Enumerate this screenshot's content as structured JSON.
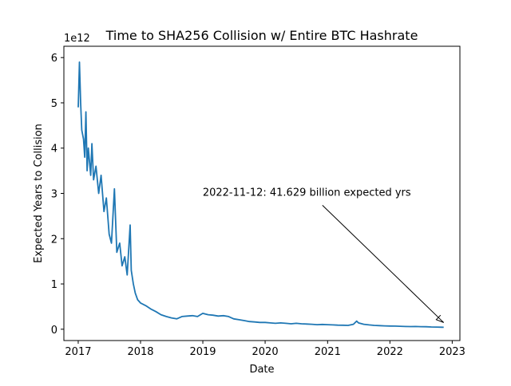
{
  "chart_data": {
    "type": "line",
    "title": "Time to SHA256 Collision w/ Entire BTC Hashrate",
    "xlabel": "Date",
    "ylabel": "Expected Years to Collision",
    "y_offset_label": "1e12",
    "x_scale": "time",
    "xlim": [
      "2016-10-09",
      "2023-02-15"
    ],
    "ylim": [
      -250000000000,
      6250000000000
    ],
    "x_ticks": [
      "2017",
      "2018",
      "2019",
      "2020",
      "2021",
      "2022",
      "2023"
    ],
    "y_ticks": [
      "0",
      "1",
      "2",
      "3",
      "4",
      "5",
      "6"
    ],
    "grid": false,
    "legend": "none",
    "series": [
      {
        "color": "#1f77b4",
        "x": [
          "2017-01-01",
          "2017-01-08",
          "2017-01-15",
          "2017-01-22",
          "2017-02-01",
          "2017-02-08",
          "2017-02-15",
          "2017-02-22",
          "2017-03-01",
          "2017-03-08",
          "2017-03-15",
          "2017-03-22",
          "2017-04-01",
          "2017-04-15",
          "2017-05-01",
          "2017-05-15",
          "2017-06-01",
          "2017-06-15",
          "2017-07-01",
          "2017-07-15",
          "2017-08-01",
          "2017-08-15",
          "2017-09-01",
          "2017-09-15",
          "2017-10-01",
          "2017-10-15",
          "2017-11-01",
          "2017-11-08",
          "2017-11-20",
          "2017-12-01",
          "2017-12-15",
          "2018-01-01",
          "2018-02-01",
          "2018-03-01",
          "2018-04-01",
          "2018-05-01",
          "2018-06-01",
          "2018-07-01",
          "2018-08-01",
          "2018-09-01",
          "2018-10-01",
          "2018-11-01",
          "2018-12-01",
          "2019-01-01",
          "2019-02-01",
          "2019-03-01",
          "2019-04-01",
          "2019-05-01",
          "2019-06-01",
          "2019-07-01",
          "2019-08-01",
          "2019-09-01",
          "2019-10-01",
          "2019-11-01",
          "2019-12-01",
          "2020-01-01",
          "2020-02-01",
          "2020-03-01",
          "2020-04-01",
          "2020-05-01",
          "2020-06-01",
          "2020-07-01",
          "2020-08-01",
          "2020-09-01",
          "2020-10-01",
          "2020-11-01",
          "2020-12-01",
          "2021-01-01",
          "2021-02-01",
          "2021-03-01",
          "2021-04-01",
          "2021-05-01",
          "2021-06-01",
          "2021-06-20",
          "2021-07-01",
          "2021-08-01",
          "2021-09-01",
          "2021-10-01",
          "2021-11-01",
          "2021-12-01",
          "2022-01-01",
          "2022-02-01",
          "2022-03-01",
          "2022-04-01",
          "2022-05-01",
          "2022-06-01",
          "2022-07-01",
          "2022-08-01",
          "2022-09-01",
          "2022-10-01",
          "2022-11-01",
          "2022-11-12"
        ],
        "y": [
          4900000000000,
          5900000000000,
          5000000000000,
          4400000000000,
          4200000000000,
          3800000000000,
          4800000000000,
          3500000000000,
          4000000000000,
          3700000000000,
          3400000000000,
          4100000000000,
          3300000000000,
          3600000000000,
          3000000000000,
          3400000000000,
          2600000000000,
          2900000000000,
          2100000000000,
          1900000000000,
          3100000000000,
          1700000000000,
          1900000000000,
          1400000000000,
          1600000000000,
          1200000000000,
          2300000000000,
          1300000000000,
          1000000000000,
          800000000000,
          650000000000,
          580000000000,
          520000000000,
          450000000000,
          390000000000,
          320000000000,
          280000000000,
          250000000000,
          230000000000,
          280000000000,
          290000000000,
          300000000000,
          280000000000,
          350000000000,
          320000000000,
          310000000000,
          290000000000,
          300000000000,
          280000000000,
          230000000000,
          210000000000,
          190000000000,
          170000000000,
          160000000000,
          150000000000,
          150000000000,
          140000000000,
          130000000000,
          140000000000,
          130000000000,
          120000000000,
          130000000000,
          120000000000,
          115000000000,
          110000000000,
          100000000000,
          105000000000,
          100000000000,
          95000000000,
          90000000000,
          88000000000,
          85000000000,
          110000000000,
          180000000000,
          140000000000,
          110000000000,
          95000000000,
          85000000000,
          80000000000,
          75000000000,
          70000000000,
          68000000000,
          65000000000,
          60000000000,
          58000000000,
          60000000000,
          56000000000,
          54000000000,
          50000000000,
          48000000000,
          45000000000,
          41629000000
        ]
      }
    ],
    "annotations": [
      {
        "text": "2022-11-12: 41.629 billion expected yrs",
        "text_x": "2018-12-31",
        "text_y": 2950000000000,
        "arrow_to_x": "2022-11-12",
        "arrow_to_y": 41629000000
      }
    ]
  }
}
